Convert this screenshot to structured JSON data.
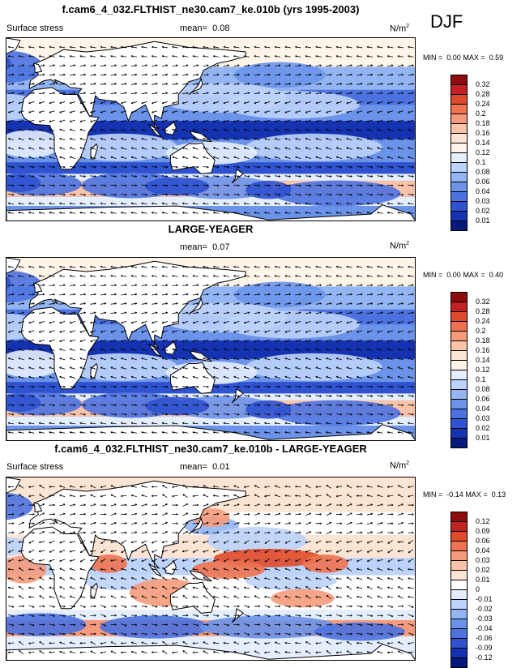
{
  "season": "DJF",
  "chart_data": [
    {
      "type": "heatmap",
      "title": "f.cam6_4_032.FLTHIST_ne30.cam7_ke.010b (yrs 1995-2003)",
      "variable": "Surface stress",
      "mean_label": "mean=",
      "mean": "0.08",
      "units_base": "N/m",
      "units_exp": "2",
      "min_label": "MIN =",
      "min": "0.00",
      "max_label": "MAX =",
      "max": "0.59",
      "levels": [
        "0.32",
        "0.28",
        "0.24",
        "0.2",
        "0.18",
        "0.16",
        "0.14",
        "0.12",
        "0.1",
        "0.08",
        "0.06",
        "0.04",
        "0.03",
        "0.02",
        "0.01"
      ],
      "colors": [
        "#8e0c0c",
        "#c32222",
        "#e04a2a",
        "#ee7350",
        "#f59b7c",
        "#f9c3a9",
        "#fbe4d3",
        "#fff4e8",
        "#e4eeff",
        "#bcd3fb",
        "#93b5f3",
        "#6c93ea",
        "#4c72e0",
        "#2f52cf",
        "#1533b0",
        "#06197d"
      ]
    },
    {
      "type": "heatmap",
      "title": "LARGE-YEAGER",
      "variable": "",
      "mean_label": "mean=",
      "mean": "0.07",
      "units_base": "N/m",
      "units_exp": "2",
      "min_label": "MIN =",
      "min": "0.00",
      "max_label": "MAX =",
      "max": "0.40",
      "levels": [
        "0.32",
        "0.28",
        "0.24",
        "0.2",
        "0.18",
        "0.16",
        "0.14",
        "0.12",
        "0.1",
        "0.08",
        "0.06",
        "0.04",
        "0.03",
        "0.02",
        "0.01"
      ],
      "colors": [
        "#8e0c0c",
        "#c32222",
        "#e04a2a",
        "#ee7350",
        "#f59b7c",
        "#f9c3a9",
        "#fbe4d3",
        "#fff4e8",
        "#e4eeff",
        "#bcd3fb",
        "#93b5f3",
        "#6c93ea",
        "#4c72e0",
        "#2f52cf",
        "#1533b0",
        "#06197d"
      ]
    },
    {
      "type": "heatmap",
      "title": "f.cam6_4_032.FLTHIST_ne30.cam7_ke.010b - LARGE-YEAGER",
      "variable": "Surface stress",
      "mean_label": "mean=",
      "mean": "0.01",
      "units_base": "N/m",
      "units_exp": "2",
      "min_label": "MIN =",
      "min": "-0.14",
      "max_label": "MAX =",
      "max": "0.13",
      "levels": [
        "0.12",
        "0.09",
        "0.06",
        "0.04",
        "0.03",
        "0.02",
        "0.01",
        "0",
        "-0.01",
        "-0.02",
        "-0.03",
        "-0.04",
        "-0.06",
        "-0.09",
        "-0.12"
      ],
      "colors": [
        "#8e0c0c",
        "#c32222",
        "#e04a2a",
        "#ee7350",
        "#f59b7c",
        "#f9c3a9",
        "#fbe4d3",
        "#ffffff",
        "#e4eeff",
        "#bcd3fb",
        "#93b5f3",
        "#6c93ea",
        "#4c72e0",
        "#2f52cf",
        "#1533b0",
        "#06197d"
      ]
    }
  ]
}
